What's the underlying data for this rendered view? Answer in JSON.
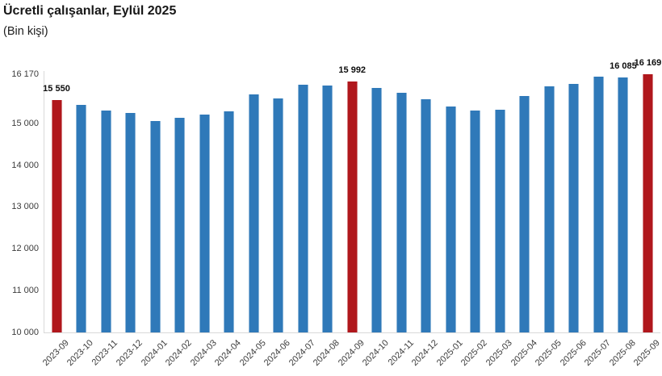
{
  "title": "Ücretli çalışanlar, Eylül 2025",
  "subtitle": "(Bin kişi)",
  "chart_data": {
    "type": "bar",
    "title": "Ücretli çalışanlar, Eylül 2025",
    "subtitle": "(Bin kişi)",
    "xlabel": "",
    "ylabel": "",
    "grid": false,
    "legend": "none",
    "ylim": [
      10000,
      16170
    ],
    "categories": [
      "2023-09",
      "2023-10",
      "2023-11",
      "2023-12",
      "2024-01",
      "2024-02",
      "2024-03",
      "2024-04",
      "2024-05",
      "2024-06",
      "2024-07",
      "2024-08",
      "2024-09",
      "2024-10",
      "2024-11",
      "2024-12",
      "2025-01",
      "2025-02",
      "2025-03",
      "2025-04",
      "2025-05",
      "2025-06",
      "2025-07",
      "2025-08",
      "2025-09"
    ],
    "values": [
      15550,
      15440,
      15305,
      15235,
      15055,
      15120,
      15210,
      15275,
      15690,
      15595,
      15915,
      15895,
      15992,
      15850,
      15735,
      15575,
      15395,
      15300,
      15320,
      15650,
      15880,
      15930,
      16110,
      16085,
      16169
    ],
    "highlight_indices": [
      0,
      12,
      24
    ],
    "bar_color": "#2f79b9",
    "highlight_color": "#b0171c",
    "value_labels": [
      {
        "index": 0,
        "text": "15 550"
      },
      {
        "index": 12,
        "text": "15 992"
      },
      {
        "index": 23,
        "text": "16 085"
      },
      {
        "index": 24,
        "text": "16 169"
      }
    ],
    "y_ticks": [
      {
        "value": 16170,
        "label": "16 170"
      },
      {
        "value": 15000,
        "label": "15 000"
      },
      {
        "value": 14000,
        "label": "14 000"
      },
      {
        "value": 13000,
        "label": "13 000"
      },
      {
        "value": 12000,
        "label": "12 000"
      },
      {
        "value": 11000,
        "label": "11 000"
      },
      {
        "value": 10000,
        "label": "10 000"
      }
    ]
  }
}
